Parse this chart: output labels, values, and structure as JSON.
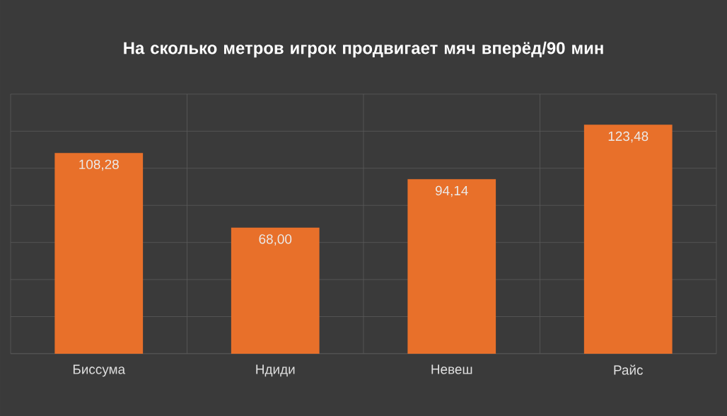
{
  "chart_data": {
    "type": "bar",
    "title": "На сколько метров игрок продвигает мяч вперёд/90 мин",
    "categories": [
      "Биссума",
      "Ндиди",
      "Невеш",
      "Райс"
    ],
    "values": [
      108.28,
      68.0,
      94.14,
      123.48
    ],
    "value_labels": [
      "108,28",
      "68,00",
      "94,14",
      "123,48"
    ],
    "color": "#e8702a",
    "ylim": [
      0,
      140
    ],
    "yticks": [
      {
        "value": 0,
        "label": null
      },
      {
        "value": 20,
        "label": null
      },
      {
        "value": 40,
        "label": null
      },
      {
        "value": 60,
        "label": null
      },
      {
        "value": 80,
        "label": null
      },
      {
        "value": 100,
        "label": null
      },
      {
        "value": 120,
        "label": null
      },
      {
        "value": 140,
        "label": null
      }
    ],
    "tick_labels": "x",
    "grid": true
  }
}
